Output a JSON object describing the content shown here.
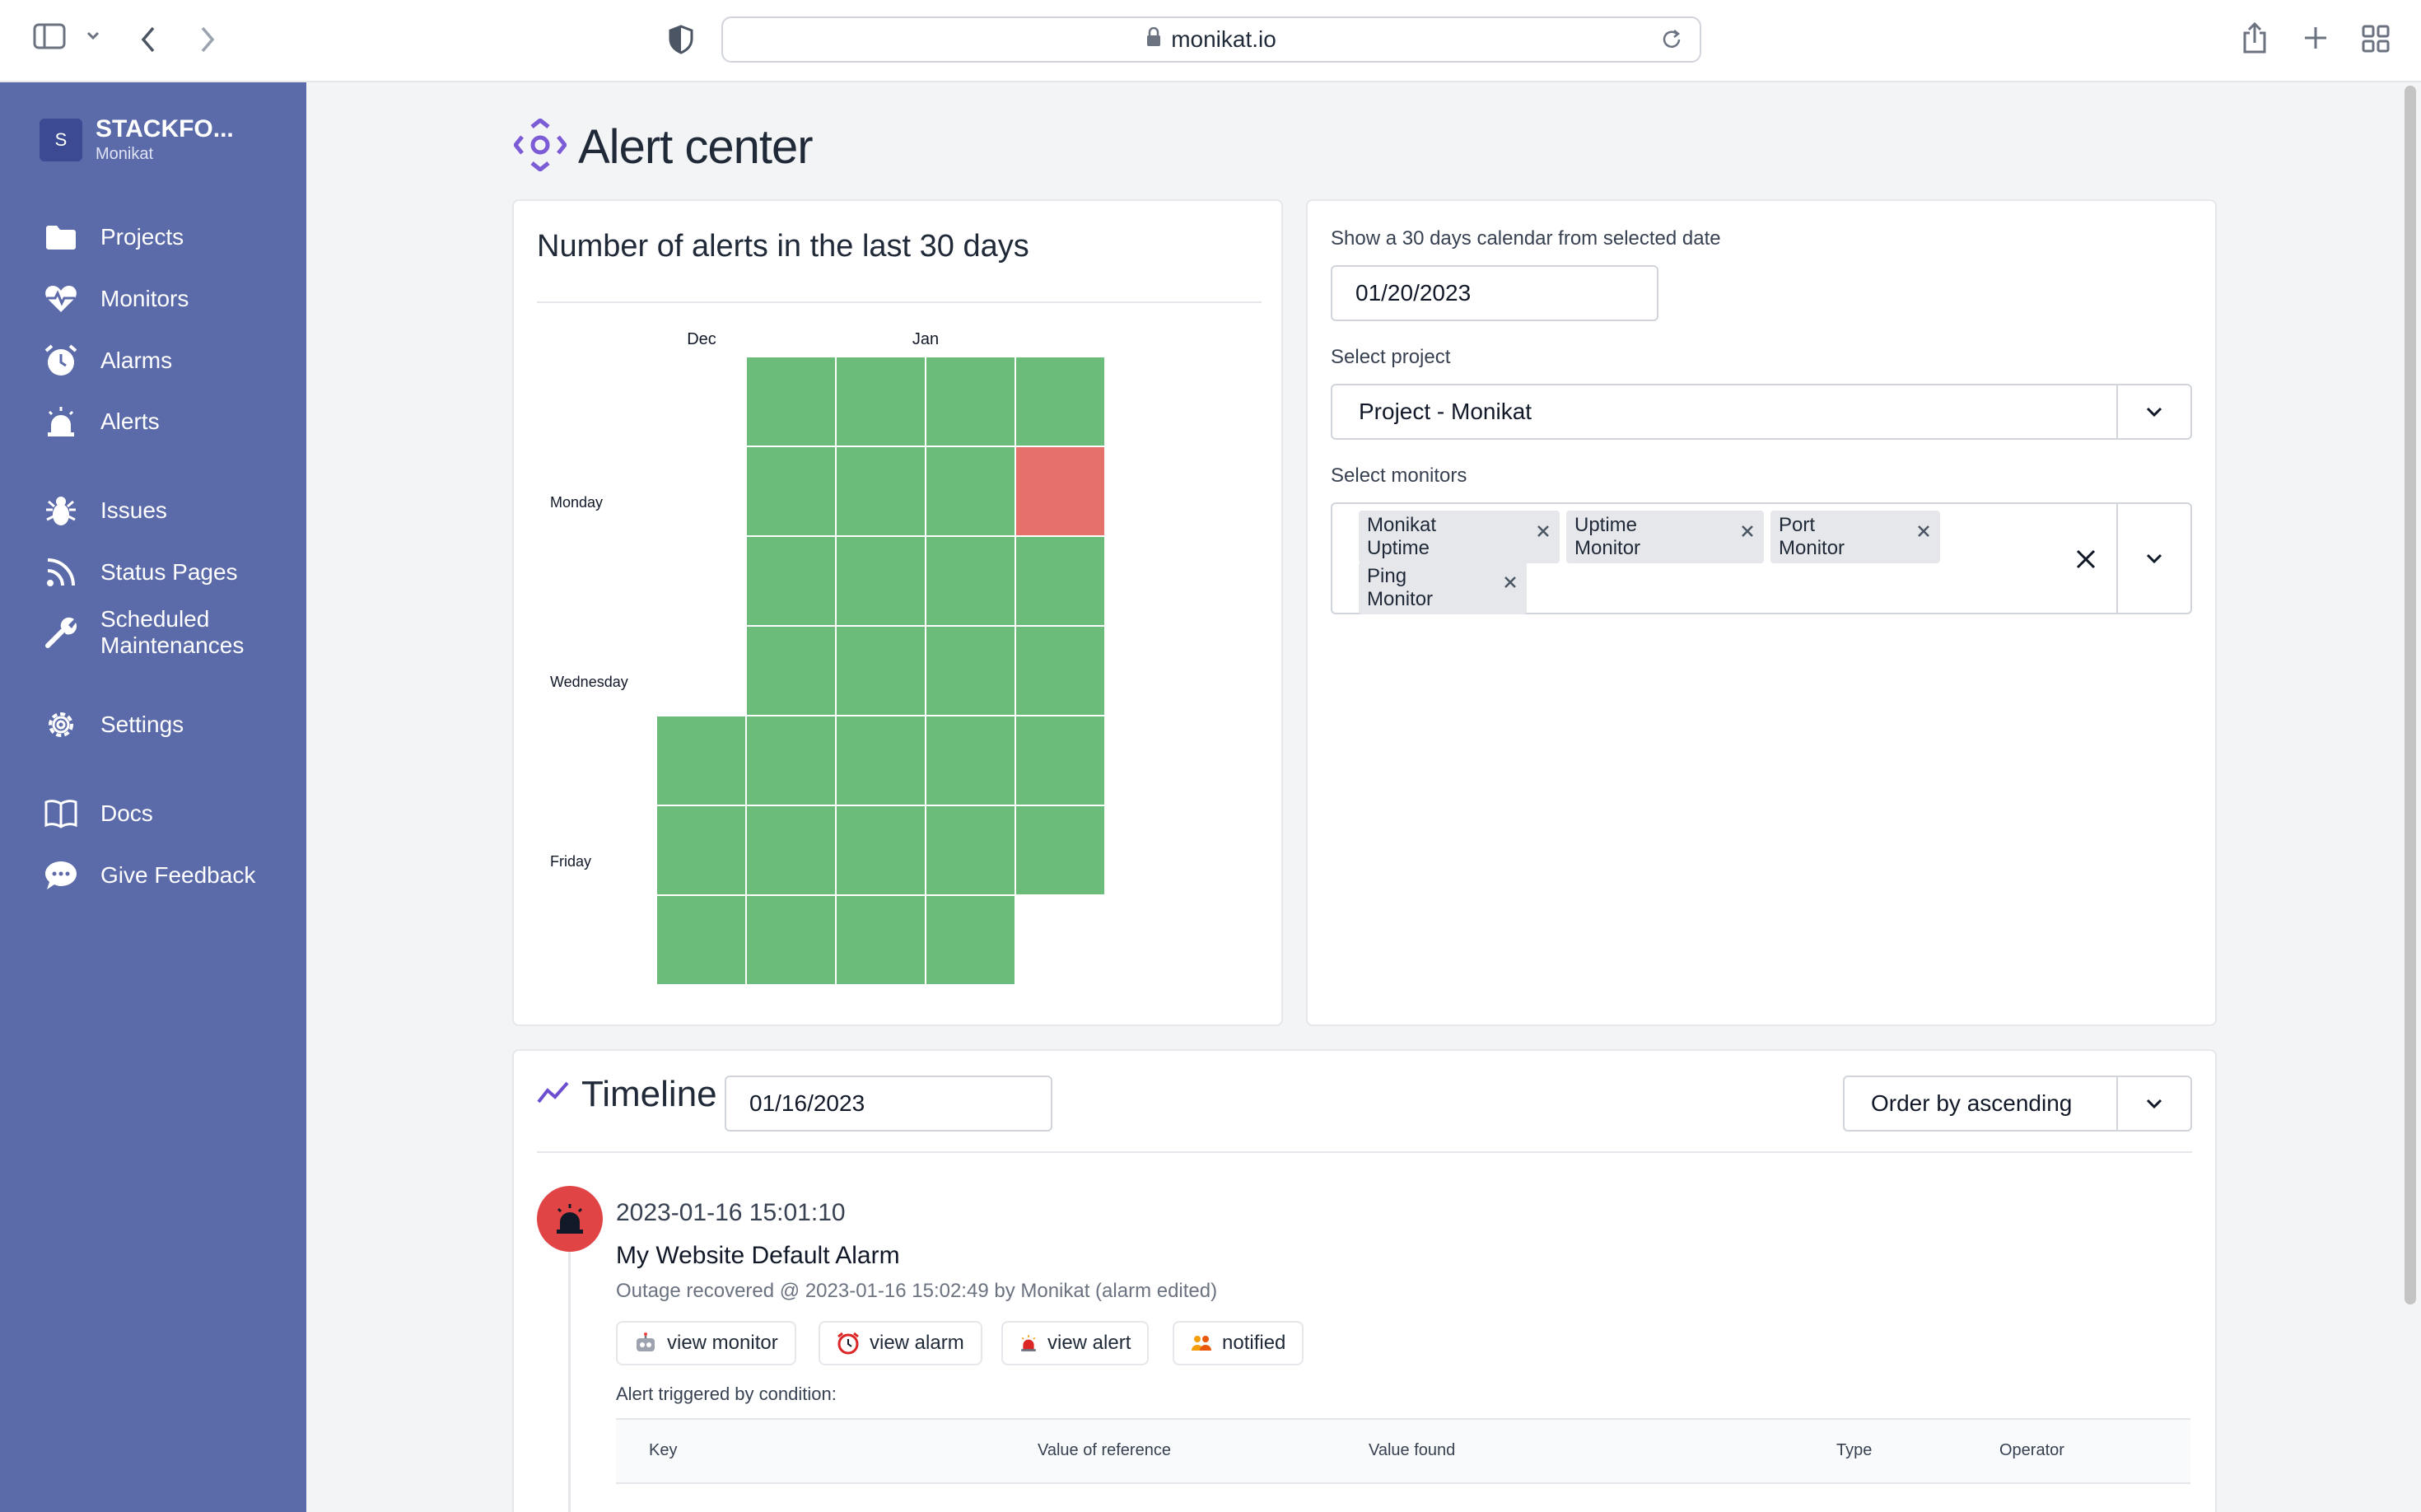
{
  "browser": {
    "url": "monikat.io"
  },
  "sidebar": {
    "org_initial": "S",
    "org_name": "STACKFO...",
    "org_sub": "Monikat",
    "items": [
      {
        "label": "Projects",
        "icon": "folder-icon"
      },
      {
        "label": "Monitors",
        "icon": "heart-pulse-icon"
      },
      {
        "label": "Alarms",
        "icon": "alarm-clock-icon"
      },
      {
        "label": "Alerts",
        "icon": "siren-icon"
      },
      {
        "label": "Issues",
        "icon": "bug-icon"
      },
      {
        "label": "Status Pages",
        "icon": "rss-icon"
      },
      {
        "label": "Scheduled Maintenances",
        "icon": "wrench-icon"
      },
      {
        "label": "Settings",
        "icon": "gear-icon"
      },
      {
        "label": "Docs",
        "icon": "book-icon"
      },
      {
        "label": "Give Feedback",
        "icon": "chat-bubble-icon"
      }
    ]
  },
  "page": {
    "title": "Alert center"
  },
  "heatmap": {
    "title": "Number of alerts in the last 30 days",
    "month_labels": [
      "Dec",
      "Jan"
    ],
    "day_labels": [
      "Monday",
      "Wednesday",
      "Friday"
    ],
    "colors": {
      "ok": "#6bbb7b",
      "alert": "#e5716b"
    }
  },
  "chart_data": {
    "type": "heatmap",
    "title": "Number of alerts in the last 30 days",
    "x_labels": [
      "Dec",
      "Jan"
    ],
    "y_labels": [
      "Monday",
      "Wednesday",
      "Friday"
    ],
    "columns": [
      {
        "cells": [
          null,
          null,
          null,
          null,
          0,
          0,
          0
        ]
      },
      {
        "cells": [
          0,
          0,
          0,
          0,
          0,
          0,
          0
        ]
      },
      {
        "cells": [
          0,
          0,
          0,
          0,
          0,
          0,
          0
        ]
      },
      {
        "cells": [
          0,
          0,
          0,
          0,
          0,
          0,
          0
        ]
      },
      {
        "cells": [
          0,
          1,
          0,
          0,
          0,
          0,
          null
        ]
      }
    ]
  },
  "filters": {
    "date_label": "Show a 30 days calendar from selected date",
    "date_value": "01/20/2023",
    "project_label": "Select project",
    "project_value": "Project - Monikat",
    "monitors_label": "Select monitors",
    "monitors": [
      "Monikat Uptime",
      "Uptime Monitor",
      "Port Monitor",
      "Ping Monitor"
    ]
  },
  "timeline": {
    "title": "Timeline",
    "date_value": "01/16/2023",
    "order_value": "Order by ascending",
    "event": {
      "datetime": "2023-01-16 15:01:10",
      "title": "My Website Default Alarm",
      "subtitle": "Outage recovered @ 2023-01-16 15:02:49 by Monikat (alarm edited)",
      "buttons": [
        {
          "label": "view monitor",
          "icon": "robot-icon"
        },
        {
          "label": "view alarm",
          "icon": "alarm-clock-icon"
        },
        {
          "label": "view alert",
          "icon": "siren-icon"
        },
        {
          "label": "notified",
          "icon": "people-icon"
        }
      ],
      "condition_label": "Alert triggered by condition:",
      "table_headers": [
        "Key",
        "Value of reference",
        "Value found",
        "Type",
        "Operator"
      ]
    }
  }
}
